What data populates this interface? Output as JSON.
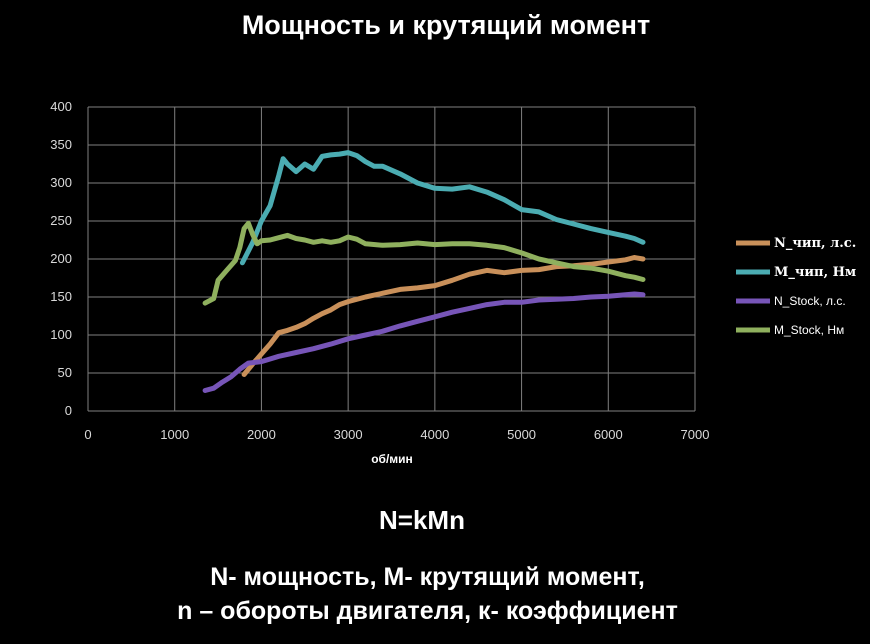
{
  "title": "Мощность и крутящий момент",
  "formula": "N=kMn",
  "caption_line1": "N- мощность, M- крутящий момент,",
  "caption_line2": "n – обороты двигателя, к- коэффициент",
  "chart_data": {
    "type": "line",
    "title": "Мощность и крутящий момент",
    "xlabel": "об/мин",
    "ylabel": "",
    "xlim": [
      0,
      7000
    ],
    "ylim": [
      0,
      400
    ],
    "xticks": [
      0,
      1000,
      2000,
      3000,
      4000,
      5000,
      6000,
      7000
    ],
    "yticks": [
      0,
      50,
      100,
      150,
      200,
      250,
      300,
      350,
      400
    ],
    "grid": true,
    "legend_position": "right",
    "series": [
      {
        "name": "N_чип, л.с.",
        "color": "#c9905a",
        "points": [
          [
            1800,
            48
          ],
          [
            1900,
            62
          ],
          [
            2000,
            75
          ],
          [
            2100,
            88
          ],
          [
            2200,
            103
          ],
          [
            2300,
            106
          ],
          [
            2400,
            110
          ],
          [
            2500,
            115
          ],
          [
            2600,
            122
          ],
          [
            2700,
            128
          ],
          [
            2800,
            133
          ],
          [
            2900,
            140
          ],
          [
            3000,
            144
          ],
          [
            3200,
            150
          ],
          [
            3400,
            155
          ],
          [
            3600,
            160
          ],
          [
            3800,
            162
          ],
          [
            4000,
            165
          ],
          [
            4200,
            172
          ],
          [
            4400,
            180
          ],
          [
            4600,
            185
          ],
          [
            4800,
            182
          ],
          [
            5000,
            185
          ],
          [
            5200,
            186
          ],
          [
            5400,
            190
          ],
          [
            5600,
            191
          ],
          [
            5800,
            193
          ],
          [
            6000,
            196
          ],
          [
            6200,
            199
          ],
          [
            6300,
            202
          ],
          [
            6400,
            200
          ]
        ]
      },
      {
        "name": "M_чип, Нм",
        "color": "#4bacb2",
        "points": [
          [
            1780,
            195
          ],
          [
            1900,
            222
          ],
          [
            2000,
            250
          ],
          [
            2100,
            270
          ],
          [
            2200,
            310
          ],
          [
            2250,
            332
          ],
          [
            2300,
            325
          ],
          [
            2400,
            315
          ],
          [
            2500,
            325
          ],
          [
            2600,
            318
          ],
          [
            2700,
            335
          ],
          [
            2800,
            337
          ],
          [
            2900,
            338
          ],
          [
            3000,
            340
          ],
          [
            3100,
            336
          ],
          [
            3200,
            328
          ],
          [
            3300,
            322
          ],
          [
            3400,
            322
          ],
          [
            3600,
            312
          ],
          [
            3800,
            300
          ],
          [
            4000,
            293
          ],
          [
            4200,
            292
          ],
          [
            4400,
            295
          ],
          [
            4600,
            288
          ],
          [
            4800,
            278
          ],
          [
            5000,
            265
          ],
          [
            5200,
            262
          ],
          [
            5400,
            252
          ],
          [
            5600,
            246
          ],
          [
            5800,
            240
          ],
          [
            6000,
            235
          ],
          [
            6200,
            230
          ],
          [
            6300,
            227
          ],
          [
            6400,
            222
          ]
        ]
      },
      {
        "name": "N_Stock, л.с.",
        "color": "#7755b8",
        "points": [
          [
            1350,
            27
          ],
          [
            1450,
            30
          ],
          [
            1550,
            38
          ],
          [
            1650,
            45
          ],
          [
            1750,
            55
          ],
          [
            1850,
            63
          ],
          [
            2000,
            65
          ],
          [
            2200,
            72
          ],
          [
            2400,
            77
          ],
          [
            2600,
            82
          ],
          [
            2800,
            88
          ],
          [
            3000,
            95
          ],
          [
            3200,
            100
          ],
          [
            3400,
            105
          ],
          [
            3600,
            112
          ],
          [
            3800,
            118
          ],
          [
            4000,
            124
          ],
          [
            4200,
            130
          ],
          [
            4400,
            135
          ],
          [
            4600,
            140
          ],
          [
            4800,
            143
          ],
          [
            5000,
            143
          ],
          [
            5200,
            146
          ],
          [
            5400,
            147
          ],
          [
            5600,
            148
          ],
          [
            5800,
            150
          ],
          [
            6000,
            151
          ],
          [
            6200,
            153
          ],
          [
            6300,
            154
          ],
          [
            6400,
            153
          ]
        ]
      },
      {
        "name": "M_Stock, Нм",
        "color": "#8fb05e",
        "points": [
          [
            1350,
            142
          ],
          [
            1450,
            148
          ],
          [
            1500,
            172
          ],
          [
            1600,
            185
          ],
          [
            1700,
            198
          ],
          [
            1750,
            215
          ],
          [
            1800,
            240
          ],
          [
            1850,
            247
          ],
          [
            1900,
            232
          ],
          [
            1950,
            220
          ],
          [
            2000,
            224
          ],
          [
            2100,
            225
          ],
          [
            2200,
            228
          ],
          [
            2300,
            231
          ],
          [
            2400,
            227
          ],
          [
            2500,
            225
          ],
          [
            2600,
            222
          ],
          [
            2700,
            224
          ],
          [
            2800,
            222
          ],
          [
            2900,
            224
          ],
          [
            3000,
            229
          ],
          [
            3100,
            226
          ],
          [
            3200,
            220
          ],
          [
            3400,
            218
          ],
          [
            3600,
            219
          ],
          [
            3800,
            221
          ],
          [
            4000,
            219
          ],
          [
            4200,
            220
          ],
          [
            4400,
            220
          ],
          [
            4600,
            218
          ],
          [
            4800,
            215
          ],
          [
            5000,
            208
          ],
          [
            5200,
            200
          ],
          [
            5400,
            195
          ],
          [
            5600,
            190
          ],
          [
            5800,
            188
          ],
          [
            6000,
            184
          ],
          [
            6200,
            178
          ],
          [
            6300,
            176
          ],
          [
            6400,
            173
          ]
        ]
      }
    ]
  }
}
